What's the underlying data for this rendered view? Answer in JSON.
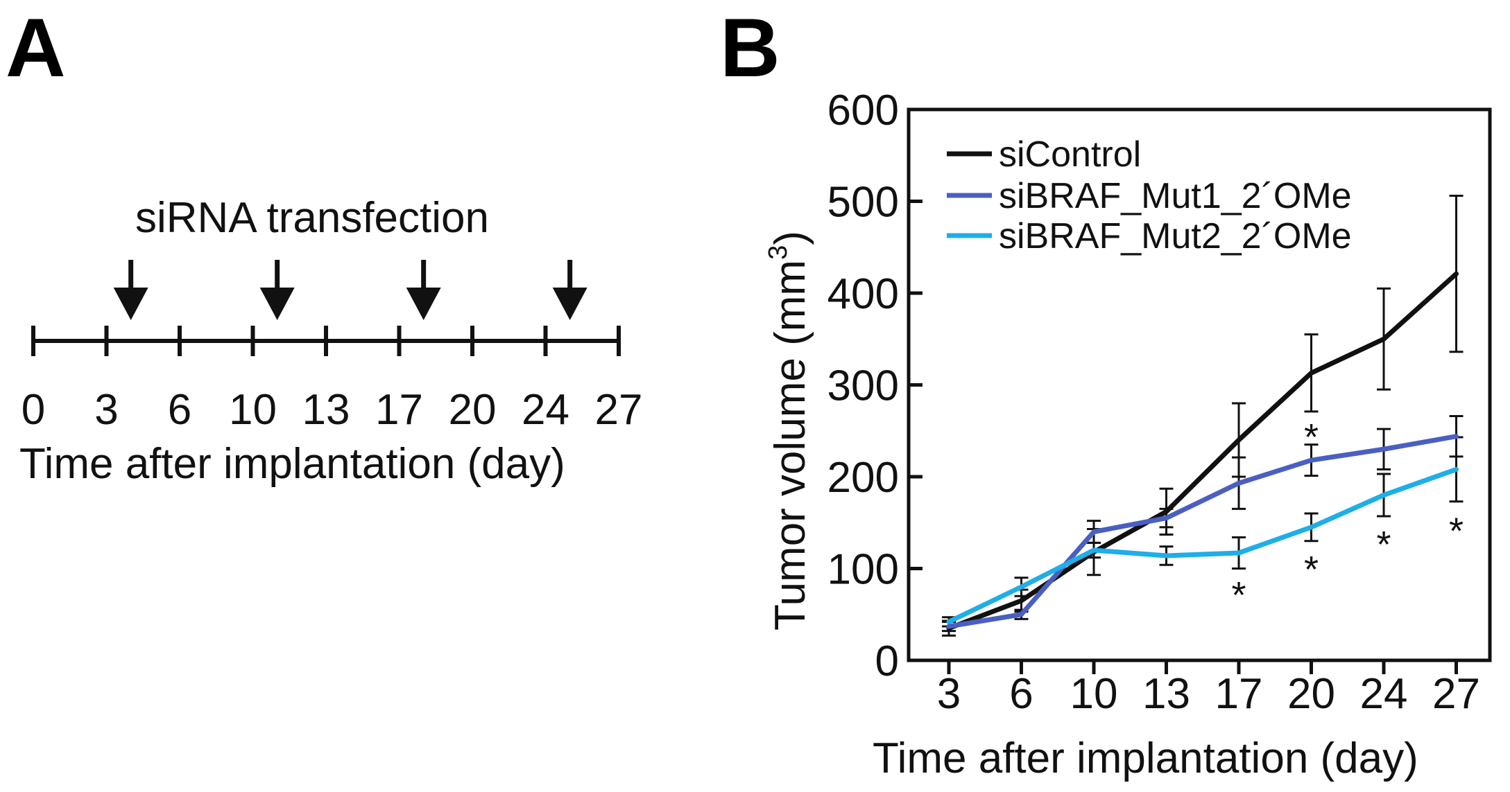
{
  "panel_a": {
    "letter": "A",
    "title": "siRNA transfection",
    "xlabel": "Time after implantation (day)",
    "tick_labels": [
      "0",
      "3",
      "6",
      "10",
      "13",
      "17",
      "20",
      "24",
      "27"
    ],
    "transfection_days": [
      4,
      11,
      18,
      25
    ]
  },
  "panel_b": {
    "letter": "B"
  },
  "chart_data": {
    "type": "line",
    "title": "",
    "xlabel": "Time after implantation (day)",
    "ylabel_main": "Tumor volume (mm",
    "ylabel_sup": "3",
    "ylabel_close": ")",
    "x": [
      3,
      6,
      10,
      13,
      17,
      20,
      24,
      27
    ],
    "categories": [
      "3",
      "6",
      "10",
      "13",
      "17",
      "20",
      "24",
      "27"
    ],
    "ylim": [
      0,
      600
    ],
    "yticks": [
      0,
      100,
      200,
      300,
      400,
      500,
      600
    ],
    "ytick_labels": [
      "0",
      "100",
      "200",
      "300",
      "400",
      "500",
      "600"
    ],
    "legend_position": "top-left",
    "series": [
      {
        "name": "siControl",
        "color": "#111111",
        "values": [
          35,
          65,
          118,
          162,
          240,
          313,
          350,
          421
        ],
        "errors": [
          8,
          12,
          25,
          25,
          40,
          42,
          55,
          85
        ]
      },
      {
        "name": "siBRAF_Mut1_2´OMe",
        "color": "#4a5fc1",
        "values": [
          37,
          50,
          140,
          155,
          193,
          218,
          230,
          244
        ],
        "errors": [
          5,
          5,
          12,
          10,
          28,
          17,
          22,
          22
        ]
      },
      {
        "name": "siBRAF_Mut2_2´OMe",
        "color": "#1eaee8",
        "values": [
          42,
          80,
          120,
          114,
          117,
          145,
          180,
          208
        ],
        "errors": [
          5,
          10,
          8,
          10,
          17,
          15,
          23,
          35
        ]
      }
    ],
    "significance": [
      {
        "x": 17,
        "label": "*",
        "y": 80
      },
      {
        "x": 20,
        "label": "*",
        "y": 252
      },
      {
        "x": 20,
        "label": "*",
        "y": 108
      },
      {
        "x": 24,
        "label": "*",
        "y": 135
      },
      {
        "x": 27,
        "label": "*",
        "y": 150
      }
    ]
  }
}
